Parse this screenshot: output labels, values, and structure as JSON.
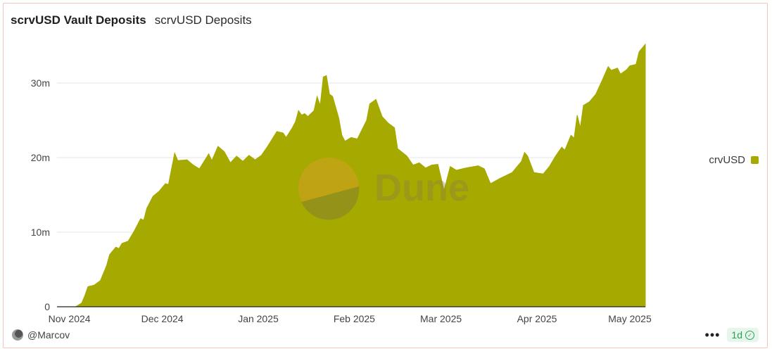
{
  "header": {
    "title": "scrvUSD Vault Deposits",
    "subtitle": "scrvUSD Deposits"
  },
  "footer": {
    "author": "@Marcov",
    "more_label": "•••",
    "refresh_badge": "1d"
  },
  "watermark": {
    "text": "Dune"
  },
  "colors": {
    "series": "#a5a900",
    "grid": "#e6e6e6"
  },
  "chart_data": {
    "type": "area",
    "title": "",
    "xlabel": "",
    "ylabel": "",
    "ylim": [
      0,
      35000000
    ],
    "xlim": [
      "2024-10-28",
      "2025-05-06"
    ],
    "y_ticks": [
      0,
      10000000,
      20000000,
      30000000
    ],
    "y_tick_labels": [
      "0",
      "10m",
      "20m",
      "30m"
    ],
    "x_ticks": [
      "2024-11-01",
      "2024-12-01",
      "2025-01-01",
      "2025-02-01",
      "2025-03-01",
      "2025-04-01",
      "2025-05-01"
    ],
    "x_tick_labels": [
      "Nov 2024",
      "Dec 2024",
      "Jan 2025",
      "Feb 2025",
      "Mar 2025",
      "Apr 2025",
      "May 2025"
    ],
    "legend": {
      "position": "right"
    },
    "grid": true,
    "series": [
      {
        "name": "crvUSD",
        "color": "#a5a900",
        "points": [
          [
            "2024-10-28",
            0
          ],
          [
            "2024-11-03",
            0
          ],
          [
            "2024-11-05",
            500000
          ],
          [
            "2024-11-06",
            1500000
          ],
          [
            "2024-11-07",
            2700000
          ],
          [
            "2024-11-09",
            2900000
          ],
          [
            "2024-11-11",
            3500000
          ],
          [
            "2024-11-13",
            5500000
          ],
          [
            "2024-11-14",
            7000000
          ],
          [
            "2024-11-16",
            8000000
          ],
          [
            "2024-11-17",
            7800000
          ],
          [
            "2024-11-18",
            8500000
          ],
          [
            "2024-11-20",
            8800000
          ],
          [
            "2024-11-22",
            10200000
          ],
          [
            "2024-11-24",
            11800000
          ],
          [
            "2024-11-25",
            11600000
          ],
          [
            "2024-11-26",
            13200000
          ],
          [
            "2024-11-28",
            14800000
          ],
          [
            "2024-11-30",
            15500000
          ],
          [
            "2024-12-02",
            16500000
          ],
          [
            "2024-12-03",
            16400000
          ],
          [
            "2024-12-05",
            20600000
          ],
          [
            "2024-12-06",
            19600000
          ],
          [
            "2024-12-09",
            19700000
          ],
          [
            "2024-12-11",
            19000000
          ],
          [
            "2024-12-13",
            18500000
          ],
          [
            "2024-12-16",
            20500000
          ],
          [
            "2024-12-17",
            19600000
          ],
          [
            "2024-12-19",
            21500000
          ],
          [
            "2024-12-21",
            20800000
          ],
          [
            "2024-12-23",
            19300000
          ],
          [
            "2024-12-25",
            20200000
          ],
          [
            "2024-12-27",
            19500000
          ],
          [
            "2024-12-29",
            20300000
          ],
          [
            "2024-12-31",
            19700000
          ],
          [
            "2025-01-02",
            20300000
          ],
          [
            "2025-01-04",
            21500000
          ],
          [
            "2025-01-07",
            23500000
          ],
          [
            "2025-01-09",
            23300000
          ],
          [
            "2025-01-10",
            22700000
          ],
          [
            "2025-01-12",
            24000000
          ],
          [
            "2025-01-13",
            24800000
          ],
          [
            "2025-01-14",
            26300000
          ],
          [
            "2025-01-15",
            25700000
          ],
          [
            "2025-01-16",
            25900000
          ],
          [
            "2025-01-17",
            25500000
          ],
          [
            "2025-01-19",
            26300000
          ],
          [
            "2025-01-20",
            28200000
          ],
          [
            "2025-01-21",
            27000000
          ],
          [
            "2025-01-22",
            30800000
          ],
          [
            "2025-01-23",
            31000000
          ],
          [
            "2025-01-24",
            28500000
          ],
          [
            "2025-01-25",
            28200000
          ],
          [
            "2025-01-27",
            25300000
          ],
          [
            "2025-01-28",
            23000000
          ],
          [
            "2025-01-29",
            22200000
          ],
          [
            "2025-01-31",
            22700000
          ],
          [
            "2025-02-02",
            22500000
          ],
          [
            "2025-02-05",
            25000000
          ],
          [
            "2025-02-06",
            27200000
          ],
          [
            "2025-02-08",
            27800000
          ],
          [
            "2025-02-10",
            25500000
          ],
          [
            "2025-02-12",
            24600000
          ],
          [
            "2025-02-14",
            24000000
          ],
          [
            "2025-02-15",
            21200000
          ],
          [
            "2025-02-18",
            20200000
          ],
          [
            "2025-02-20",
            19000000
          ],
          [
            "2025-02-22",
            19300000
          ],
          [
            "2025-02-24",
            18600000
          ],
          [
            "2025-02-26",
            19000000
          ],
          [
            "2025-02-28",
            19100000
          ],
          [
            "2025-03-02",
            15600000
          ],
          [
            "2025-03-04",
            18800000
          ],
          [
            "2025-03-06",
            18300000
          ],
          [
            "2025-03-09",
            18600000
          ],
          [
            "2025-03-13",
            18900000
          ],
          [
            "2025-03-15",
            18500000
          ],
          [
            "2025-03-17",
            16500000
          ],
          [
            "2025-03-20",
            17200000
          ],
          [
            "2025-03-24",
            18000000
          ],
          [
            "2025-03-25",
            18500000
          ],
          [
            "2025-03-27",
            19500000
          ],
          [
            "2025-03-28",
            20700000
          ],
          [
            "2025-03-29",
            20200000
          ],
          [
            "2025-03-31",
            18000000
          ],
          [
            "2025-04-03",
            17800000
          ],
          [
            "2025-04-05",
            18800000
          ],
          [
            "2025-04-07",
            20200000
          ],
          [
            "2025-04-09",
            21400000
          ],
          [
            "2025-04-10",
            21000000
          ],
          [
            "2025-04-12",
            23000000
          ],
          [
            "2025-04-13",
            22600000
          ],
          [
            "2025-04-14",
            25700000
          ],
          [
            "2025-04-15",
            24000000
          ],
          [
            "2025-04-16",
            27000000
          ],
          [
            "2025-04-18",
            27500000
          ],
          [
            "2025-04-20",
            28500000
          ],
          [
            "2025-04-22",
            30300000
          ],
          [
            "2025-04-24",
            32200000
          ],
          [
            "2025-04-25",
            31700000
          ],
          [
            "2025-04-27",
            32000000
          ],
          [
            "2025-04-28",
            31200000
          ],
          [
            "2025-04-30",
            31800000
          ],
          [
            "2025-05-01",
            32300000
          ],
          [
            "2025-05-03",
            32500000
          ],
          [
            "2025-05-04",
            34200000
          ],
          [
            "2025-05-06",
            35200000
          ]
        ]
      }
    ]
  }
}
